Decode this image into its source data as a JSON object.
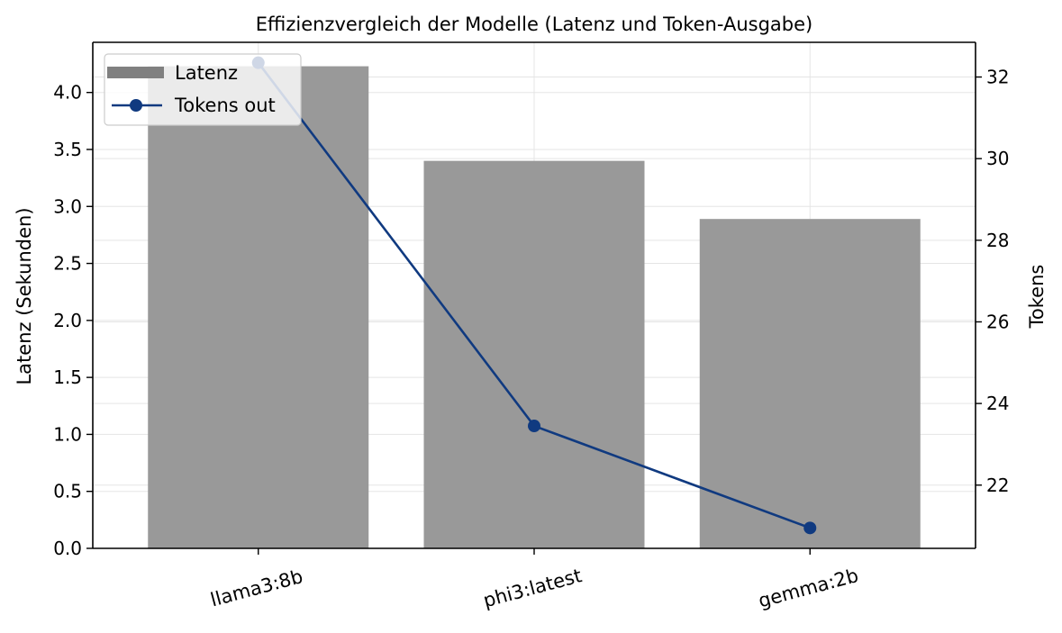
{
  "chart_data": {
    "type": "bar",
    "title": "Effizienzvergleich der Modelle (Latenz und Token-Ausgabe)",
    "categories": [
      "llama3:8b",
      "phi3:latest",
      "gemma:2b"
    ],
    "series": [
      {
        "name": "Latenz",
        "type": "bar",
        "axis": "left",
        "values": [
          4.23,
          3.4,
          2.89
        ],
        "color": "#999999",
        "legend_color": "#808080"
      },
      {
        "name": "Tokens out",
        "type": "line",
        "axis": "right",
        "marker": "circle",
        "values": [
          32.35,
          23.45,
          20.95
        ],
        "color": "#103a80"
      }
    ],
    "ylabel": "Latenz (Sekunden)",
    "ylabel_right": "Tokens",
    "ylim": [
      0,
      4.44
    ],
    "ylim_right": [
      20.45,
      32.85
    ],
    "yticks": [
      "0.0",
      "0.5",
      "1.0",
      "1.5",
      "2.0",
      "2.5",
      "3.0",
      "3.5",
      "4.0"
    ],
    "yticks_right": [
      "22",
      "24",
      "26",
      "28",
      "30",
      "32"
    ],
    "grid": true,
    "legend_position": "upper-left",
    "xtick_rotation": "-15"
  }
}
